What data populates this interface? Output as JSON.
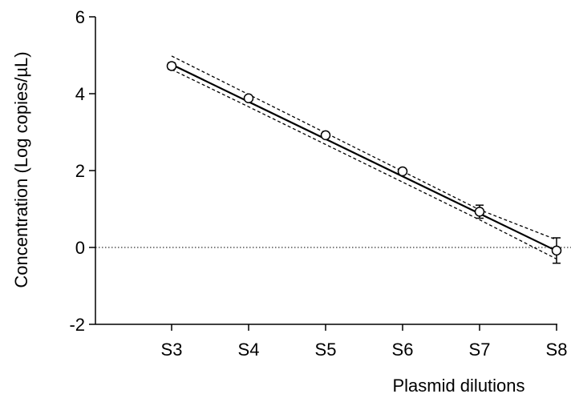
{
  "chart_data": {
    "type": "scatter",
    "title": "",
    "xlabel": "Plasmid dilutions",
    "ylabel": "Concentration (Log copies/µL)",
    "categories": [
      "S3",
      "S4",
      "S5",
      "S6",
      "S7",
      "S8"
    ],
    "ylim": [
      -2,
      6
    ],
    "yticks": [
      -2,
      0,
      2,
      4,
      6
    ],
    "grid": false,
    "legend": "none",
    "reference_line_y": 0,
    "series": [
      {
        "type": "points",
        "marker": "open-circle",
        "values": [
          4.72,
          3.88,
          2.92,
          1.98,
          0.93,
          -0.08
        ],
        "errors": [
          0.08,
          0.05,
          0.06,
          0.04,
          0.17,
          0.33
        ]
      },
      {
        "type": "fit",
        "values": [
          4.76,
          3.79,
          2.82,
          1.85,
          0.88,
          -0.09
        ]
      },
      {
        "type": "ci-upper",
        "values": [
          4.98,
          3.98,
          2.98,
          1.98,
          0.98,
          0.2
        ]
      },
      {
        "type": "ci-lower",
        "values": [
          4.63,
          3.66,
          2.68,
          1.7,
          0.72,
          -0.3
        ]
      }
    ],
    "colors": {
      "ink": "#000000",
      "background": "#ffffff"
    }
  }
}
